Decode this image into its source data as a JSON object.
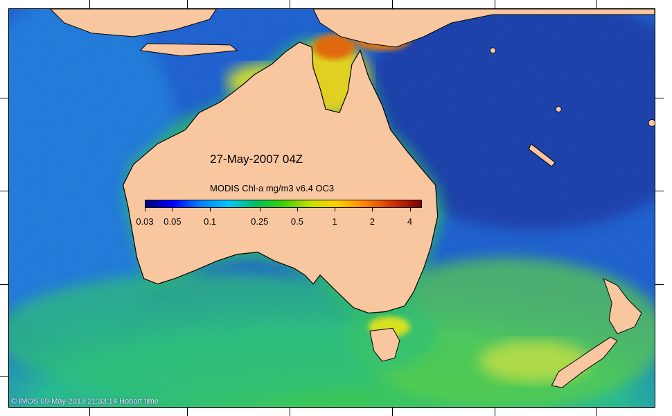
{
  "map": {
    "date_time": "27-May-2007 04Z",
    "copyright": "© IMOS 09-May-2013 21:33:14 Hobart time",
    "colors": {
      "land": "#f8c7a0",
      "ocean_deep": "#1e3ca8",
      "ocean_mid": "#1f79d8",
      "coastal": "#2fc86a",
      "high": "#c33a0c"
    }
  },
  "legend": {
    "title": "MODIS Chl-a mg/m3 v6.4 OC3",
    "unit": "mg/m3",
    "scale": "log",
    "range": [
      0.03,
      5
    ],
    "tick_labels": [
      "0.03",
      "0.05",
      "0.1",
      "0.25",
      "0.5",
      "1",
      "2",
      "4"
    ],
    "tick_values": [
      0.03,
      0.05,
      0.1,
      0.25,
      0.5,
      1,
      2,
      4
    ],
    "palette": [
      "#00007f",
      "#0000ff",
      "#0080ff",
      "#00c8ff",
      "#00c060",
      "#40d000",
      "#c8e000",
      "#ffd000",
      "#ff8000",
      "#d03000",
      "#7f0000"
    ]
  }
}
